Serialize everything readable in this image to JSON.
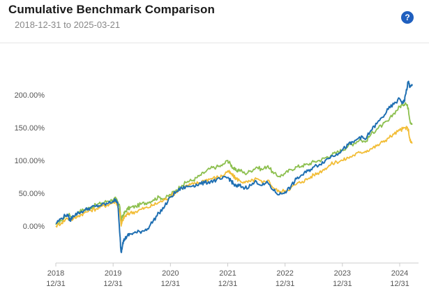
{
  "header": {
    "title": "Cumulative Benchmark Comparison",
    "date_range": "2018-12-31 to 2025-03-21",
    "help_icon": "question-circle-icon",
    "help_label": "?"
  },
  "colors": {
    "blue": "#1f6fb2",
    "green": "#8cbf4e",
    "yellow": "#f2bd36",
    "axis": "#cccccc",
    "help": "#1f5fbf"
  },
  "chart_data": {
    "type": "line",
    "title": "Cumulative Benchmark Comparison",
    "subtitle": "2018-12-31 to 2025-03-21",
    "xlabel": "",
    "ylabel": "",
    "x_tick_labels": [
      {
        "x": 2018,
        "label": "2018\n12/31"
      },
      {
        "x": 2019,
        "label": "2019\n12/31"
      },
      {
        "x": 2020,
        "label": "2020\n12/31"
      },
      {
        "x": 2021,
        "label": "2021\n12/31"
      },
      {
        "x": 2022,
        "label": "2022\n12/31"
      },
      {
        "x": 2023,
        "label": "2023\n12/31"
      },
      {
        "x": 2024,
        "label": "2024\n12/31"
      }
    ],
    "y_tick_labels": [
      {
        "y": 0,
        "label": "0.00%"
      },
      {
        "y": 50,
        "label": "50.00%"
      },
      {
        "y": 100,
        "label": "100.00%"
      },
      {
        "y": 150,
        "label": "150.00%"
      },
      {
        "y": 200,
        "label": "200.00%"
      }
    ],
    "xlim": [
      2018,
      2024.22
    ],
    "ylim": [
      -45,
      240
    ],
    "grid": false,
    "legend": "none",
    "x_units": "years since 2018-12-31 (tick 2018 = 2018-12-31)",
    "series": [
      {
        "color": "#8cbf4e",
        "points": [
          [
            2018.0,
            2
          ],
          [
            2018.1,
            8
          ],
          [
            2018.2,
            18
          ],
          [
            2018.3,
            14
          ],
          [
            2018.4,
            22
          ],
          [
            2018.5,
            25
          ],
          [
            2018.6,
            28
          ],
          [
            2018.7,
            32
          ],
          [
            2018.8,
            35
          ],
          [
            2018.9,
            38
          ],
          [
            2019.0,
            40
          ],
          [
            2019.05,
            42
          ],
          [
            2019.12,
            28
          ],
          [
            2019.14,
            8
          ],
          [
            2019.17,
            16
          ],
          [
            2019.2,
            20
          ],
          [
            2019.25,
            26
          ],
          [
            2019.3,
            28
          ],
          [
            2019.4,
            30
          ],
          [
            2019.5,
            34
          ],
          [
            2019.6,
            36
          ],
          [
            2019.7,
            40
          ],
          [
            2019.8,
            44
          ],
          [
            2019.9,
            42
          ],
          [
            2020.0,
            48
          ],
          [
            2020.1,
            55
          ],
          [
            2020.2,
            62
          ],
          [
            2020.3,
            68
          ],
          [
            2020.4,
            70
          ],
          [
            2020.5,
            76
          ],
          [
            2020.6,
            82
          ],
          [
            2020.7,
            88
          ],
          [
            2020.8,
            90
          ],
          [
            2020.9,
            92
          ],
          [
            2021.0,
            100
          ],
          [
            2021.05,
            94
          ],
          [
            2021.1,
            88
          ],
          [
            2021.15,
            84
          ],
          [
            2021.2,
            86
          ],
          [
            2021.3,
            80
          ],
          [
            2021.4,
            84
          ],
          [
            2021.5,
            90
          ],
          [
            2021.6,
            86
          ],
          [
            2021.7,
            92
          ],
          [
            2021.8,
            80
          ],
          [
            2021.9,
            76
          ],
          [
            2022.0,
            80
          ],
          [
            2022.1,
            86
          ],
          [
            2022.2,
            90
          ],
          [
            2022.3,
            92
          ],
          [
            2022.4,
            94
          ],
          [
            2022.5,
            98
          ],
          [
            2022.6,
            100
          ],
          [
            2022.7,
            104
          ],
          [
            2022.8,
            108
          ],
          [
            2022.9,
            112
          ],
          [
            2023.0,
            116
          ],
          [
            2023.1,
            122
          ],
          [
            2023.2,
            126
          ],
          [
            2023.3,
            132
          ],
          [
            2023.4,
            128
          ],
          [
            2023.5,
            140
          ],
          [
            2023.6,
            148
          ],
          [
            2023.7,
            154
          ],
          [
            2023.8,
            160
          ],
          [
            2023.9,
            172
          ],
          [
            2024.0,
            182
          ],
          [
            2024.05,
            185
          ],
          [
            2024.1,
            188
          ],
          [
            2024.15,
            180
          ],
          [
            2024.18,
            160
          ],
          [
            2024.22,
            156
          ]
        ]
      },
      {
        "color": "#f2bd36",
        "points": [
          [
            2018.0,
            0
          ],
          [
            2018.1,
            5
          ],
          [
            2018.2,
            12
          ],
          [
            2018.3,
            10
          ],
          [
            2018.4,
            16
          ],
          [
            2018.5,
            20
          ],
          [
            2018.6,
            24
          ],
          [
            2018.7,
            26
          ],
          [
            2018.8,
            30
          ],
          [
            2018.9,
            32
          ],
          [
            2019.0,
            36
          ],
          [
            2019.05,
            38
          ],
          [
            2019.12,
            20
          ],
          [
            2019.14,
            0
          ],
          [
            2019.17,
            10
          ],
          [
            2019.2,
            14
          ],
          [
            2019.25,
            18
          ],
          [
            2019.3,
            20
          ],
          [
            2019.4,
            22
          ],
          [
            2019.5,
            26
          ],
          [
            2019.6,
            28
          ],
          [
            2019.7,
            32
          ],
          [
            2019.8,
            36
          ],
          [
            2019.9,
            40
          ],
          [
            2020.0,
            46
          ],
          [
            2020.1,
            52
          ],
          [
            2020.2,
            58
          ],
          [
            2020.3,
            62
          ],
          [
            2020.4,
            64
          ],
          [
            2020.5,
            66
          ],
          [
            2020.6,
            70
          ],
          [
            2020.7,
            72
          ],
          [
            2020.8,
            74
          ],
          [
            2020.9,
            76
          ],
          [
            2021.0,
            84
          ],
          [
            2021.05,
            80
          ],
          [
            2021.1,
            76
          ],
          [
            2021.15,
            72
          ],
          [
            2021.2,
            70
          ],
          [
            2021.3,
            66
          ],
          [
            2021.4,
            68
          ],
          [
            2021.5,
            72
          ],
          [
            2021.6,
            66
          ],
          [
            2021.7,
            70
          ],
          [
            2021.8,
            58
          ],
          [
            2021.9,
            52
          ],
          [
            2022.0,
            54
          ],
          [
            2022.1,
            58
          ],
          [
            2022.2,
            64
          ],
          [
            2022.3,
            68
          ],
          [
            2022.4,
            72
          ],
          [
            2022.5,
            78
          ],
          [
            2022.6,
            82
          ],
          [
            2022.7,
            88
          ],
          [
            2022.8,
            94
          ],
          [
            2022.9,
            98
          ],
          [
            2023.0,
            100
          ],
          [
            2023.1,
            104
          ],
          [
            2023.2,
            108
          ],
          [
            2023.3,
            112
          ],
          [
            2023.4,
            114
          ],
          [
            2023.5,
            118
          ],
          [
            2023.6,
            122
          ],
          [
            2023.7,
            128
          ],
          [
            2023.8,
            134
          ],
          [
            2023.9,
            140
          ],
          [
            2024.0,
            146
          ],
          [
            2024.05,
            148
          ],
          [
            2024.1,
            150
          ],
          [
            2024.15,
            148
          ],
          [
            2024.18,
            130
          ],
          [
            2024.22,
            126
          ]
        ]
      },
      {
        "color": "#1f6fb2",
        "points": [
          [
            2018.0,
            4
          ],
          [
            2018.1,
            12
          ],
          [
            2018.2,
            18
          ],
          [
            2018.25,
            8
          ],
          [
            2018.3,
            16
          ],
          [
            2018.4,
            20
          ],
          [
            2018.5,
            24
          ],
          [
            2018.6,
            28
          ],
          [
            2018.7,
            30
          ],
          [
            2018.8,
            32
          ],
          [
            2018.9,
            34
          ],
          [
            2019.0,
            38
          ],
          [
            2019.05,
            40
          ],
          [
            2019.08,
            36
          ],
          [
            2019.12,
            -15
          ],
          [
            2019.13,
            -30
          ],
          [
            2019.14,
            -40
          ],
          [
            2019.17,
            -25
          ],
          [
            2019.2,
            -20
          ],
          [
            2019.25,
            -15
          ],
          [
            2019.3,
            -12
          ],
          [
            2019.4,
            -10
          ],
          [
            2019.5,
            -8
          ],
          [
            2019.6,
            -4
          ],
          [
            2019.7,
            8
          ],
          [
            2019.8,
            20
          ],
          [
            2019.9,
            30
          ],
          [
            2020.0,
            44
          ],
          [
            2020.1,
            52
          ],
          [
            2020.2,
            58
          ],
          [
            2020.3,
            60
          ],
          [
            2020.4,
            62
          ],
          [
            2020.5,
            64
          ],
          [
            2020.6,
            66
          ],
          [
            2020.7,
            68
          ],
          [
            2020.8,
            70
          ],
          [
            2020.9,
            72
          ],
          [
            2021.0,
            74
          ],
          [
            2021.05,
            70
          ],
          [
            2021.1,
            64
          ],
          [
            2021.15,
            60
          ],
          [
            2021.2,
            62
          ],
          [
            2021.3,
            58
          ],
          [
            2021.4,
            62
          ],
          [
            2021.5,
            68
          ],
          [
            2021.6,
            62
          ],
          [
            2021.7,
            66
          ],
          [
            2021.8,
            54
          ],
          [
            2021.9,
            48
          ],
          [
            2022.0,
            52
          ],
          [
            2022.1,
            60
          ],
          [
            2022.2,
            72
          ],
          [
            2022.3,
            78
          ],
          [
            2022.4,
            84
          ],
          [
            2022.5,
            90
          ],
          [
            2022.6,
            94
          ],
          [
            2022.7,
            100
          ],
          [
            2022.8,
            106
          ],
          [
            2022.9,
            110
          ],
          [
            2023.0,
            116
          ],
          [
            2023.1,
            124
          ],
          [
            2023.2,
            128
          ],
          [
            2023.3,
            136
          ],
          [
            2023.4,
            132
          ],
          [
            2023.5,
            146
          ],
          [
            2023.6,
            156
          ],
          [
            2023.7,
            166
          ],
          [
            2023.8,
            178
          ],
          [
            2023.9,
            186
          ],
          [
            2024.0,
            194
          ],
          [
            2024.05,
            188
          ],
          [
            2024.08,
            190
          ],
          [
            2024.1,
            200
          ],
          [
            2024.15,
            220
          ],
          [
            2024.18,
            212
          ],
          [
            2024.22,
            214
          ]
        ]
      }
    ]
  }
}
